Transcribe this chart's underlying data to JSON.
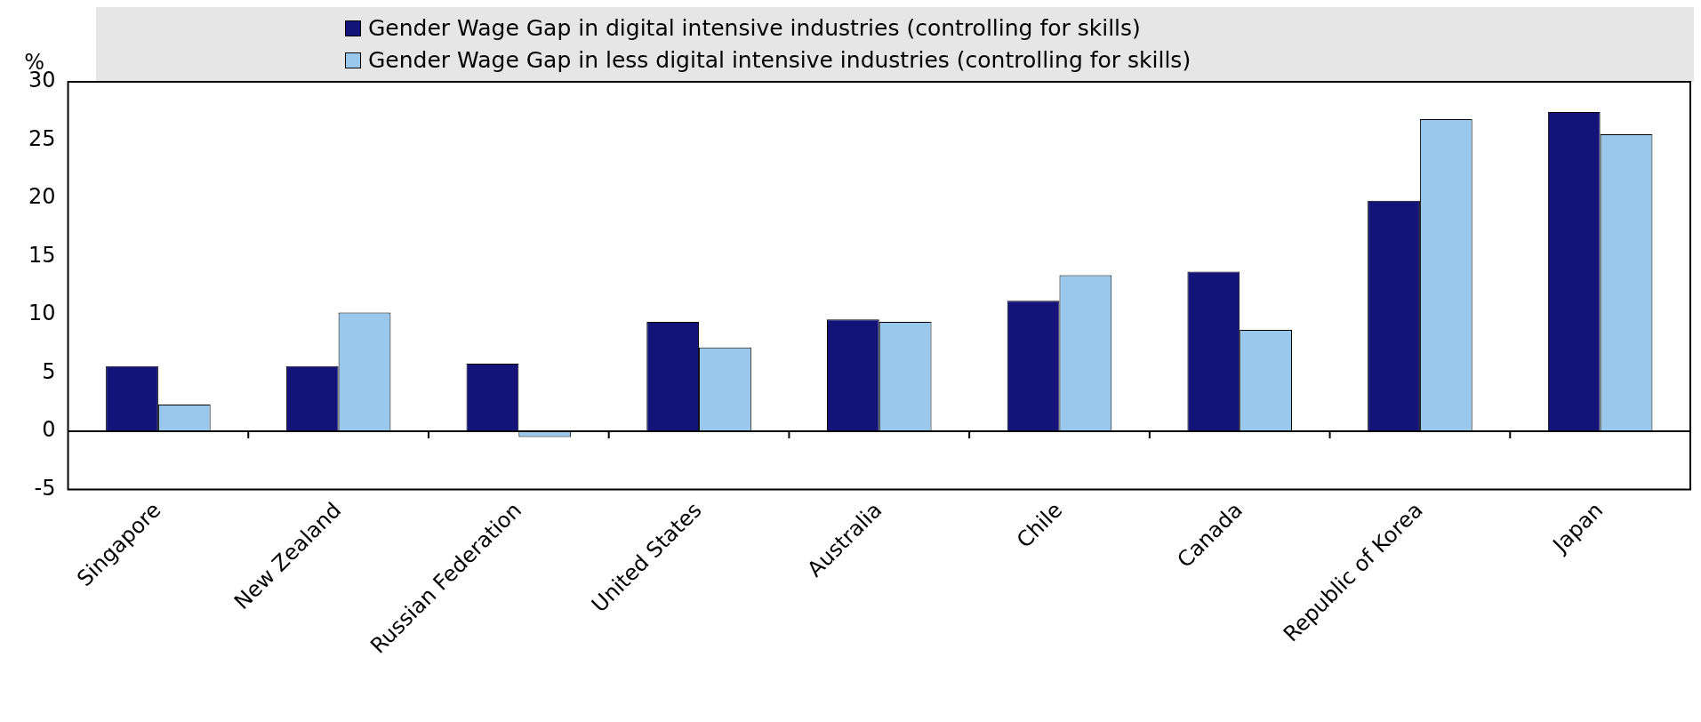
{
  "chart_data": {
    "type": "bar",
    "ylabel": "%",
    "categories": [
      "Singapore",
      "New Zealand",
      "Russian Federation",
      "United States",
      "Australia",
      "Chile",
      "Canada",
      "Republic of Korea",
      "Japan"
    ],
    "series": [
      {
        "name": "Gender Wage Gap in digital intensive industries (controlling for skills)",
        "color": "#13137a",
        "values": [
          5.6,
          5.6,
          5.8,
          9.4,
          9.6,
          11.2,
          13.7,
          19.8,
          27.4
        ]
      },
      {
        "name": "Gender Wage Gap in less digital intensive industries (controlling for skills)",
        "color": "#9ac8ec",
        "values": [
          2.3,
          10.2,
          -0.5,
          7.2,
          9.4,
          13.4,
          8.7,
          26.8,
          25.5
        ]
      }
    ],
    "ylim": [
      -5,
      30
    ],
    "yticks": [
      -5,
      0,
      5,
      10,
      15,
      20,
      25,
      30
    ],
    "grid": false,
    "legend": "top",
    "ref_lines": [
      {
        "axis": "y",
        "value": 0,
        "color": "#000000"
      }
    ]
  }
}
